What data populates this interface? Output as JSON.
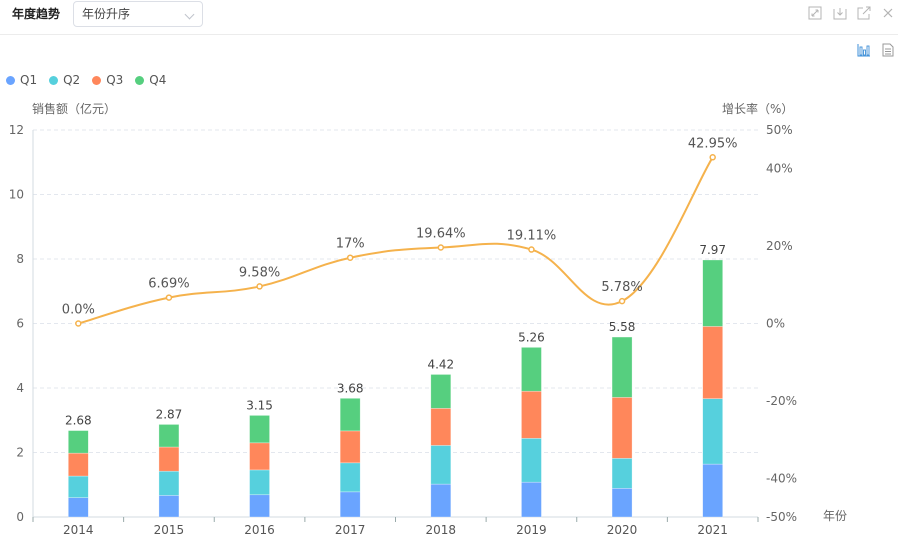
{
  "header": {
    "title": "年度趋势",
    "sort_select": {
      "value": "年份升序"
    },
    "tools": [
      {
        "name": "fullscreen-icon"
      },
      {
        "name": "download-icon"
      },
      {
        "name": "open-external-icon"
      },
      {
        "name": "close-icon"
      }
    ]
  },
  "subtoolbar": {
    "chart_view": "bar-chart-icon",
    "table_view": "document-icon"
  },
  "colors": {
    "Q1": "#6aa4ff",
    "Q2": "#56d0dd",
    "Q3": "#ff875b",
    "Q4": "#56cf7f",
    "growth_line": "#f5b24c",
    "grid": "#e3e7ee",
    "axis": "#d3dbe0"
  },
  "chart_data": {
    "type": "bar",
    "stacked": true,
    "categories": [
      "2014",
      "2015",
      "2016",
      "2017",
      "2018",
      "2019",
      "2020",
      "2021"
    ],
    "series": [
      {
        "name": "Q1",
        "values": [
          0.6,
          0.67,
          0.69,
          0.78,
          1.02,
          1.08,
          0.89,
          1.64
        ]
      },
      {
        "name": "Q2",
        "values": [
          0.67,
          0.75,
          0.77,
          0.9,
          1.2,
          1.36,
          0.93,
          2.03
        ]
      },
      {
        "name": "Q3",
        "values": [
          0.71,
          0.75,
          0.84,
          0.99,
          1.15,
          1.46,
          1.89,
          2.24
        ]
      },
      {
        "name": "Q4",
        "values": [
          0.7,
          0.7,
          0.85,
          1.01,
          1.05,
          1.36,
          1.87,
          2.06
        ]
      }
    ],
    "totals": [
      2.68,
      2.87,
      3.15,
      3.68,
      4.42,
      5.26,
      5.58,
      7.97
    ],
    "total_labels": [
      "2.68",
      "2.87",
      "3.15",
      "3.68",
      "4.42",
      "5.26",
      "5.58",
      "7.97"
    ],
    "line_series": {
      "name": "增长率",
      "type": "line",
      "smooth": true,
      "values": [
        0.0,
        6.69,
        9.58,
        17,
        19.64,
        19.11,
        5.78,
        42.95
      ],
      "labels": [
        "0.0%",
        "6.69%",
        "9.58%",
        "17%",
        "19.64%",
        "19.11%",
        "5.78%",
        "42.95%"
      ]
    },
    "xlabel": "年份",
    "ylabel": "销售额（亿元）",
    "y2label": "增长率（%）",
    "ylim": [
      0,
      12
    ],
    "yticks": [
      0,
      2,
      4,
      6,
      8,
      10,
      12
    ],
    "ytick_labels": [
      "0",
      "2",
      "4",
      "6",
      "8",
      "10",
      "12"
    ],
    "y2lim": [
      -50,
      50
    ],
    "y2ticks": [
      -50,
      -40,
      -20,
      0,
      20,
      40,
      50
    ],
    "y2tick_labels": [
      "-50%",
      "-40%",
      "-20%",
      "0%",
      "20%",
      "40%",
      "50%"
    ],
    "grid": true,
    "legend": {
      "position": "top-left",
      "entries": [
        "Q1",
        "Q2",
        "Q3",
        "Q4"
      ]
    }
  }
}
